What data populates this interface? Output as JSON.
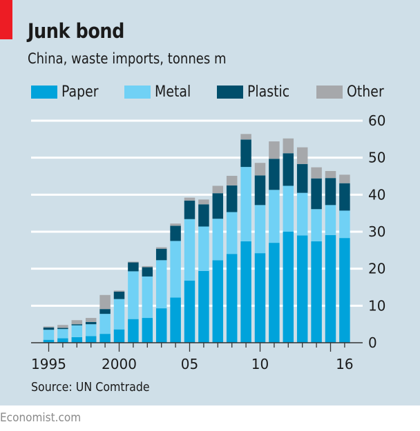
{
  "header": {
    "title": "Junk bond",
    "subtitle": "China, waste imports, tonnes m"
  },
  "legend": [
    {
      "label": "Paper",
      "color": "#00a3db"
    },
    {
      "label": "Metal",
      "color": "#70d1f5"
    },
    {
      "label": "Plastic",
      "color": "#004e6b"
    },
    {
      "label": "Other",
      "color": "#a6a8ab"
    }
  ],
  "source": "Source: UN Comtrade",
  "footer": "Economist.com",
  "chart_data": {
    "type": "bar",
    "stacked": true,
    "title": "Junk bond",
    "subtitle": "China, waste imports, tonnes m",
    "xlabel": "",
    "ylabel": "tonnes m",
    "ylim": [
      0,
      60
    ],
    "yticks": [
      0,
      10,
      20,
      30,
      40,
      50,
      60
    ],
    "y_axis_side": "right",
    "grid": true,
    "legend_position": "top-left",
    "categories": [
      1995,
      1996,
      1997,
      1998,
      1999,
      2000,
      2001,
      2002,
      2003,
      2004,
      2005,
      2006,
      2007,
      2008,
      2009,
      2010,
      2011,
      2012,
      2013,
      2014,
      2015,
      2016
    ],
    "xtick_labels": [
      {
        "year": 1995,
        "label": "1995"
      },
      {
        "year": 2000,
        "label": "2000"
      },
      {
        "year": 2005,
        "label": "05"
      },
      {
        "year": 2010,
        "label": "10"
      },
      {
        "year": 2016,
        "label": "16"
      }
    ],
    "major_tick_years": [
      1995,
      2000,
      2005,
      2010,
      2015
    ],
    "series": [
      {
        "name": "Paper",
        "color": "#00a3db",
        "values": [
          0.8,
          1.2,
          1.5,
          1.8,
          2.4,
          3.6,
          6.4,
          6.7,
          9.3,
          12.2,
          16.8,
          19.4,
          22.3,
          24.0,
          27.4,
          24.2,
          27.0,
          30.0,
          29.0,
          27.4,
          29.1,
          28.3
        ]
      },
      {
        "name": "Metal",
        "color": "#70d1f5",
        "values": [
          2.7,
          2.5,
          3.2,
          3.2,
          5.4,
          8.2,
          12.9,
          11.2,
          13.0,
          15.3,
          16.6,
          12.0,
          11.2,
          11.3,
          20.1,
          13.0,
          14.3,
          12.4,
          11.5,
          8.7,
          8.1,
          7.4
        ]
      },
      {
        "name": "Plastic",
        "color": "#004e6b",
        "values": [
          0.6,
          0.3,
          0.3,
          0.6,
          1.3,
          2.0,
          2.4,
          2.5,
          3.1,
          4.1,
          5.0,
          6.0,
          6.9,
          7.2,
          7.4,
          8.0,
          8.4,
          8.8,
          7.8,
          8.3,
          7.3,
          7.4
        ]
      },
      {
        "name": "Other",
        "color": "#a6a8ab",
        "values": [
          0.3,
          0.8,
          1.1,
          1.1,
          3.8,
          0.3,
          0.2,
          0.3,
          0.4,
          0.6,
          0.8,
          1.3,
          2.0,
          2.6,
          1.5,
          3.4,
          4.7,
          4.0,
          4.5,
          3.0,
          1.9,
          2.3
        ]
      }
    ]
  }
}
